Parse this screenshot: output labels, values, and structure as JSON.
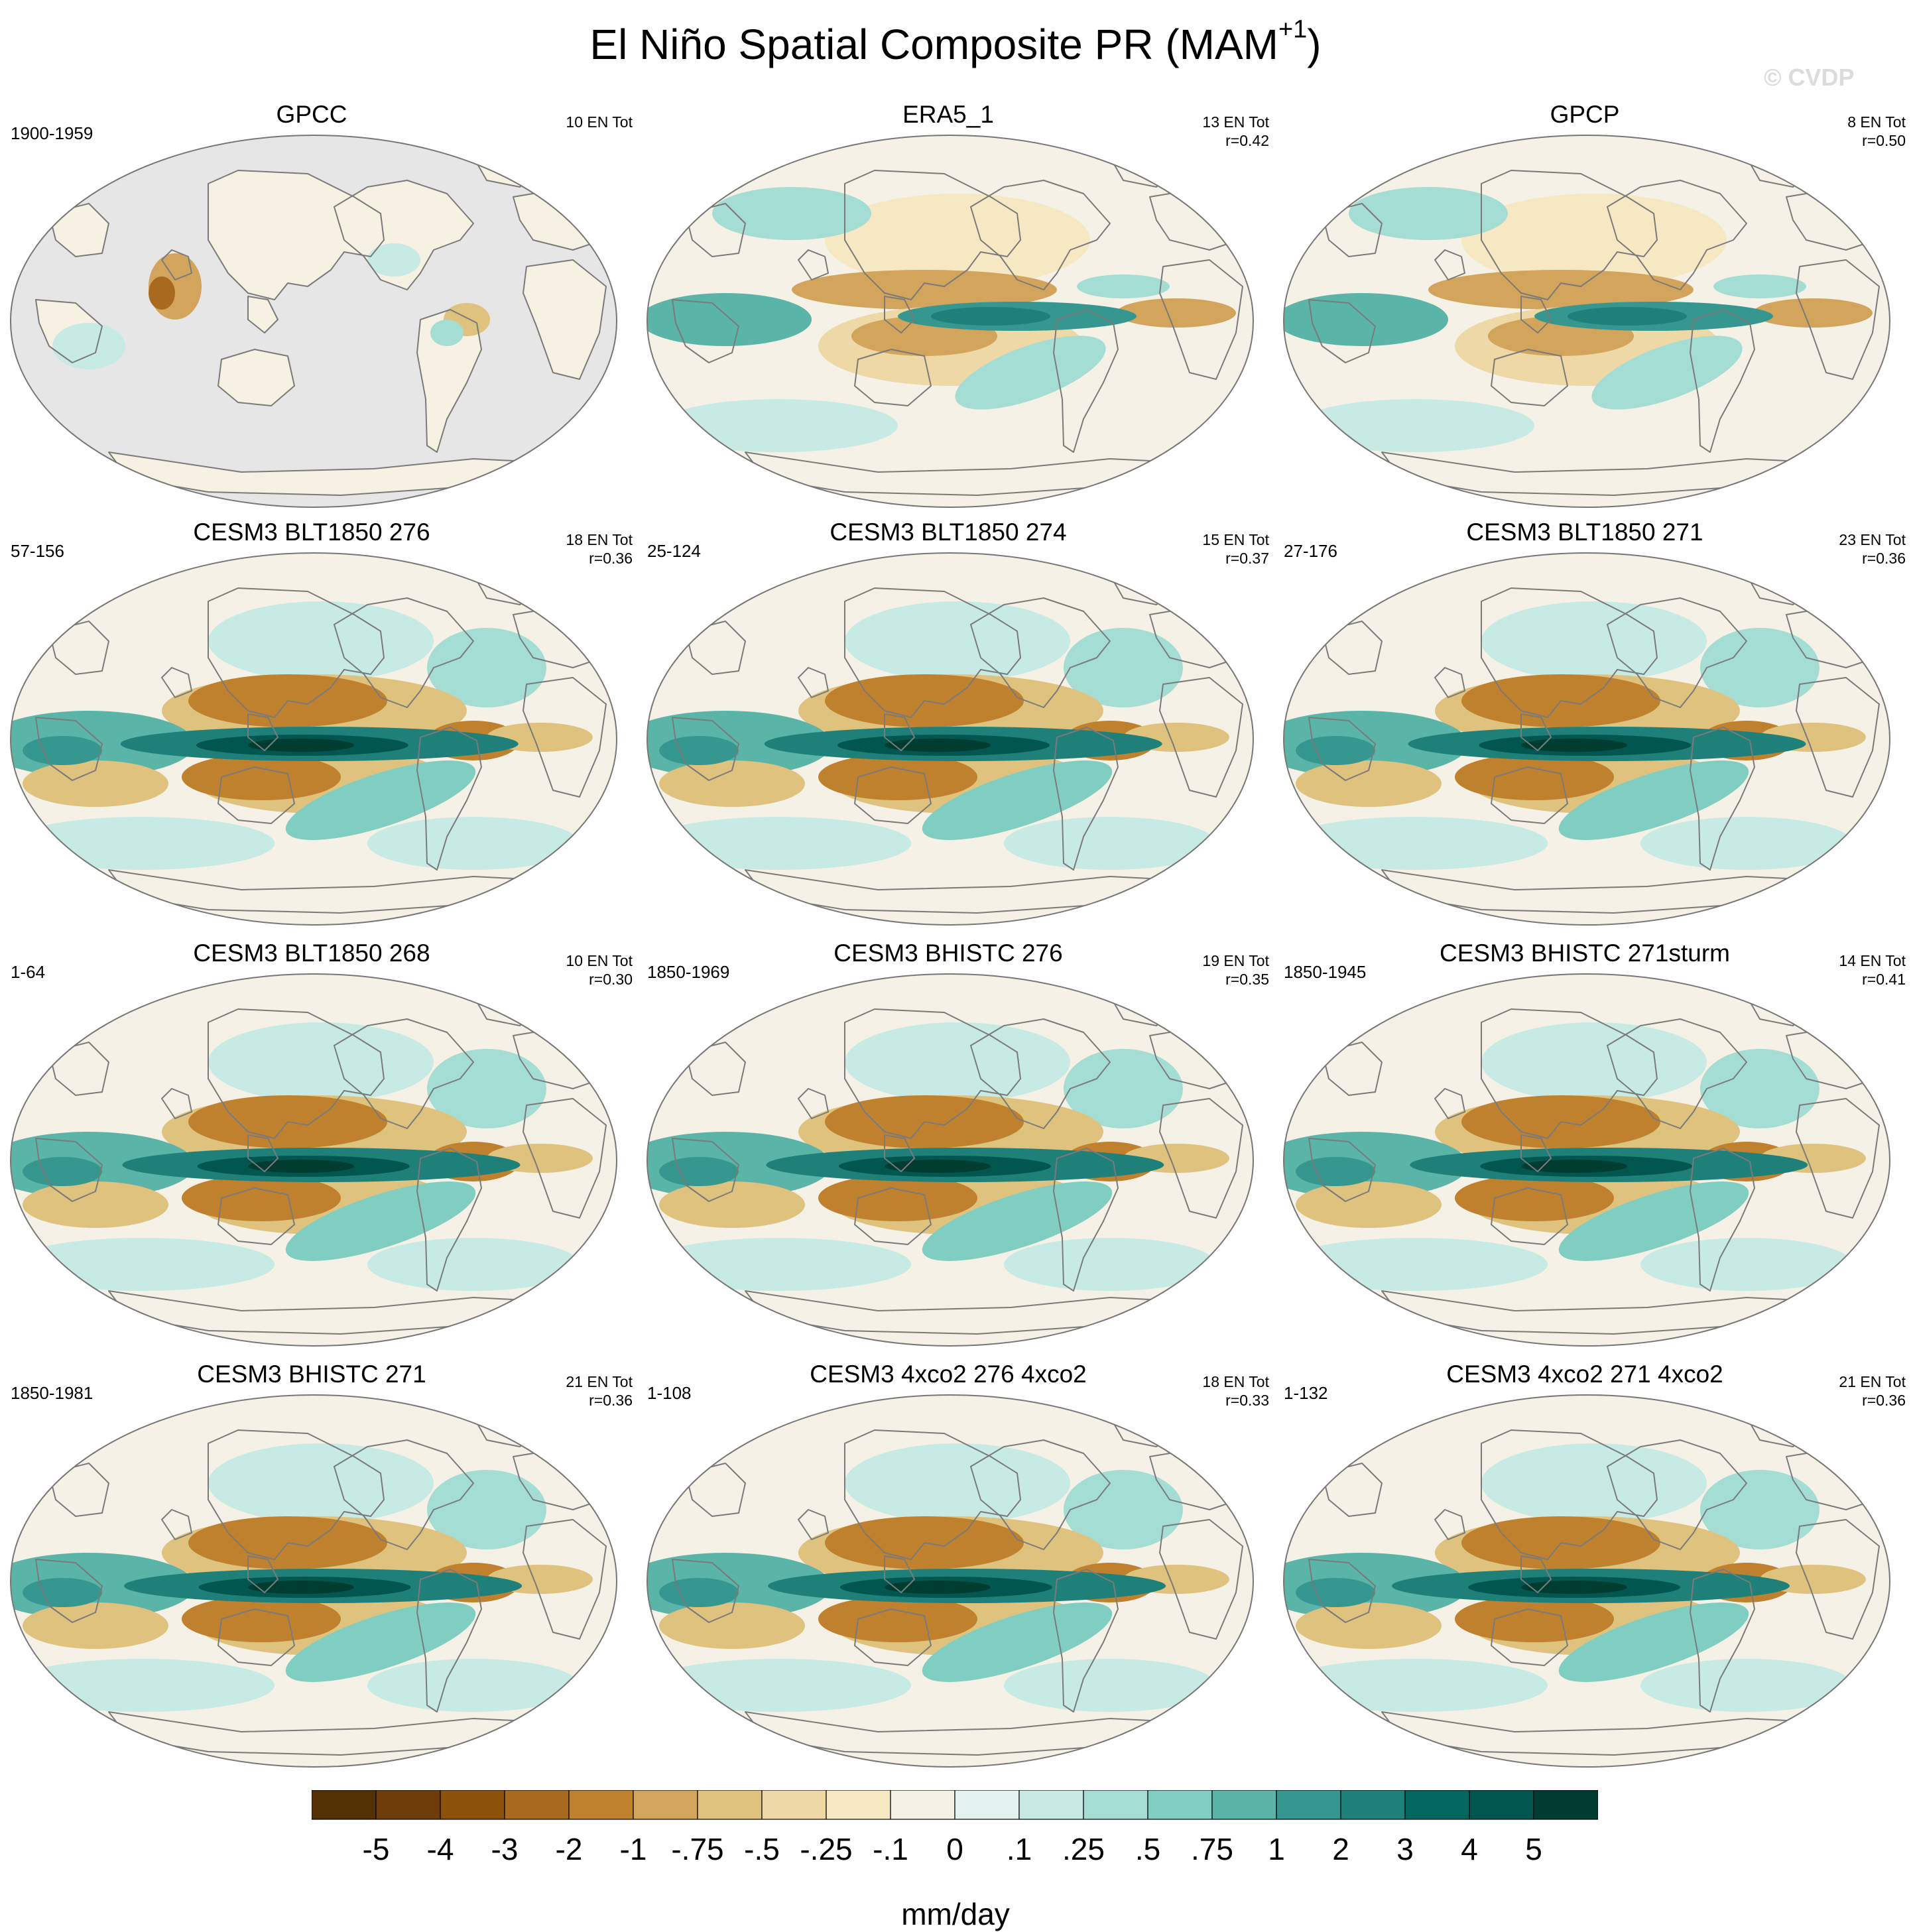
{
  "title": {
    "main": "El Niño Spatial Composite PR (MAM",
    "superscript": "+1",
    "close": ")"
  },
  "watermark": "© CVDP",
  "colors": {
    "land_mask": "#e6e6e6",
    "coastline": "#7a7a7a",
    "palette": [
      "#543005",
      "#6e3d09",
      "#8c510a",
      "#a86a1e",
      "#bf812d",
      "#d2a45c",
      "#dfc27d",
      "#edd8a6",
      "#f6e8c3",
      "#f5f1e6",
      "#e3f1ef",
      "#c7eae5",
      "#a4ddd4",
      "#80cdc1",
      "#5ab4a8",
      "#35978f",
      "#1e8078",
      "#01665e",
      "#01564f",
      "#003c30"
    ]
  },
  "chart_data": {
    "type": "heatmap",
    "projection": "robinson",
    "panels": [
      {
        "title": "GPCC",
        "years": "1900-1959",
        "events": "10 EN Tot",
        "r": "",
        "pattern": "gpcc"
      },
      {
        "title": "ERA5_1",
        "years": "",
        "events": "13 EN Tot",
        "r": "r=0.42",
        "pattern": "obs"
      },
      {
        "title": "GPCP",
        "years": "",
        "events": "8 EN Tot",
        "r": "r=0.50",
        "pattern": "obs"
      },
      {
        "title": "CESM3 BLT1850 276",
        "years": "57-156",
        "events": "18 EN Tot",
        "r": "r=0.36",
        "pattern": "model"
      },
      {
        "title": "CESM3 BLT1850 274",
        "years": "25-124",
        "events": "15 EN Tot",
        "r": "r=0.37",
        "pattern": "model"
      },
      {
        "title": "CESM3 BLT1850 271",
        "years": "27-176",
        "events": "23 EN Tot",
        "r": "r=0.36",
        "pattern": "model"
      },
      {
        "title": "CESM3 BLT1850 268",
        "years": "1-64",
        "events": "10 EN Tot",
        "r": "r=0.30",
        "pattern": "model"
      },
      {
        "title": "CESM3 BHISTC 276",
        "years": "1850-1969",
        "events": "19 EN Tot",
        "r": "r=0.35",
        "pattern": "model"
      },
      {
        "title": "CESM3 BHISTC 271sturm",
        "years": "1850-1945",
        "events": "14 EN Tot",
        "r": "r=0.41",
        "pattern": "model"
      },
      {
        "title": "CESM3 BHISTC 271",
        "years": "1850-1981",
        "events": "21 EN Tot",
        "r": "r=0.36",
        "pattern": "model"
      },
      {
        "title": "CESM3 4xco2 276 4xco2",
        "years": "1-108",
        "events": "18 EN Tot",
        "r": "r=0.33",
        "pattern": "model"
      },
      {
        "title": "CESM3 4xco2 271 4xco2",
        "years": "1-132",
        "events": "21 EN Tot",
        "r": "r=0.36",
        "pattern": "model"
      }
    ],
    "colorbar": {
      "labels": [
        "-5",
        "-4",
        "-3",
        "-2",
        "-1",
        "-.75",
        "-.5",
        "-.25",
        "-.1",
        "0",
        ".1",
        ".25",
        ".5",
        ".75",
        "1",
        "2",
        "3",
        "4",
        "5"
      ],
      "units": "mm/day"
    }
  }
}
